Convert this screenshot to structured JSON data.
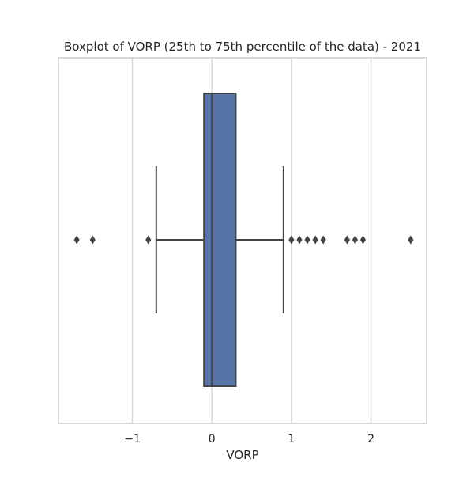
{
  "chart_data": {
    "type": "box",
    "orientation": "horizontal",
    "title": "Boxplot of VORP (25th to 75th percentile of the data) - 2021",
    "xlabel": "VORP",
    "ylabel": "",
    "xlim": [
      -1.93,
      2.7
    ],
    "xticks": [
      -1,
      0,
      1,
      2
    ],
    "xtick_labels": [
      "−1",
      "0",
      "1",
      "2"
    ],
    "grid": true,
    "box": {
      "q1": -0.1,
      "median": 0.0,
      "q3": 0.3,
      "whisker_low": -0.7,
      "whisker_high": 0.9,
      "outliers": [
        -1.7,
        -1.5,
        -0.8,
        1.0,
        1.1,
        1.2,
        1.3,
        1.4,
        1.7,
        1.8,
        1.9,
        2.5
      ]
    },
    "colors": {
      "box_fill": "#5873a5",
      "line": "#444444",
      "grid": "#d9d9d9",
      "frame": "#cccccc"
    }
  }
}
